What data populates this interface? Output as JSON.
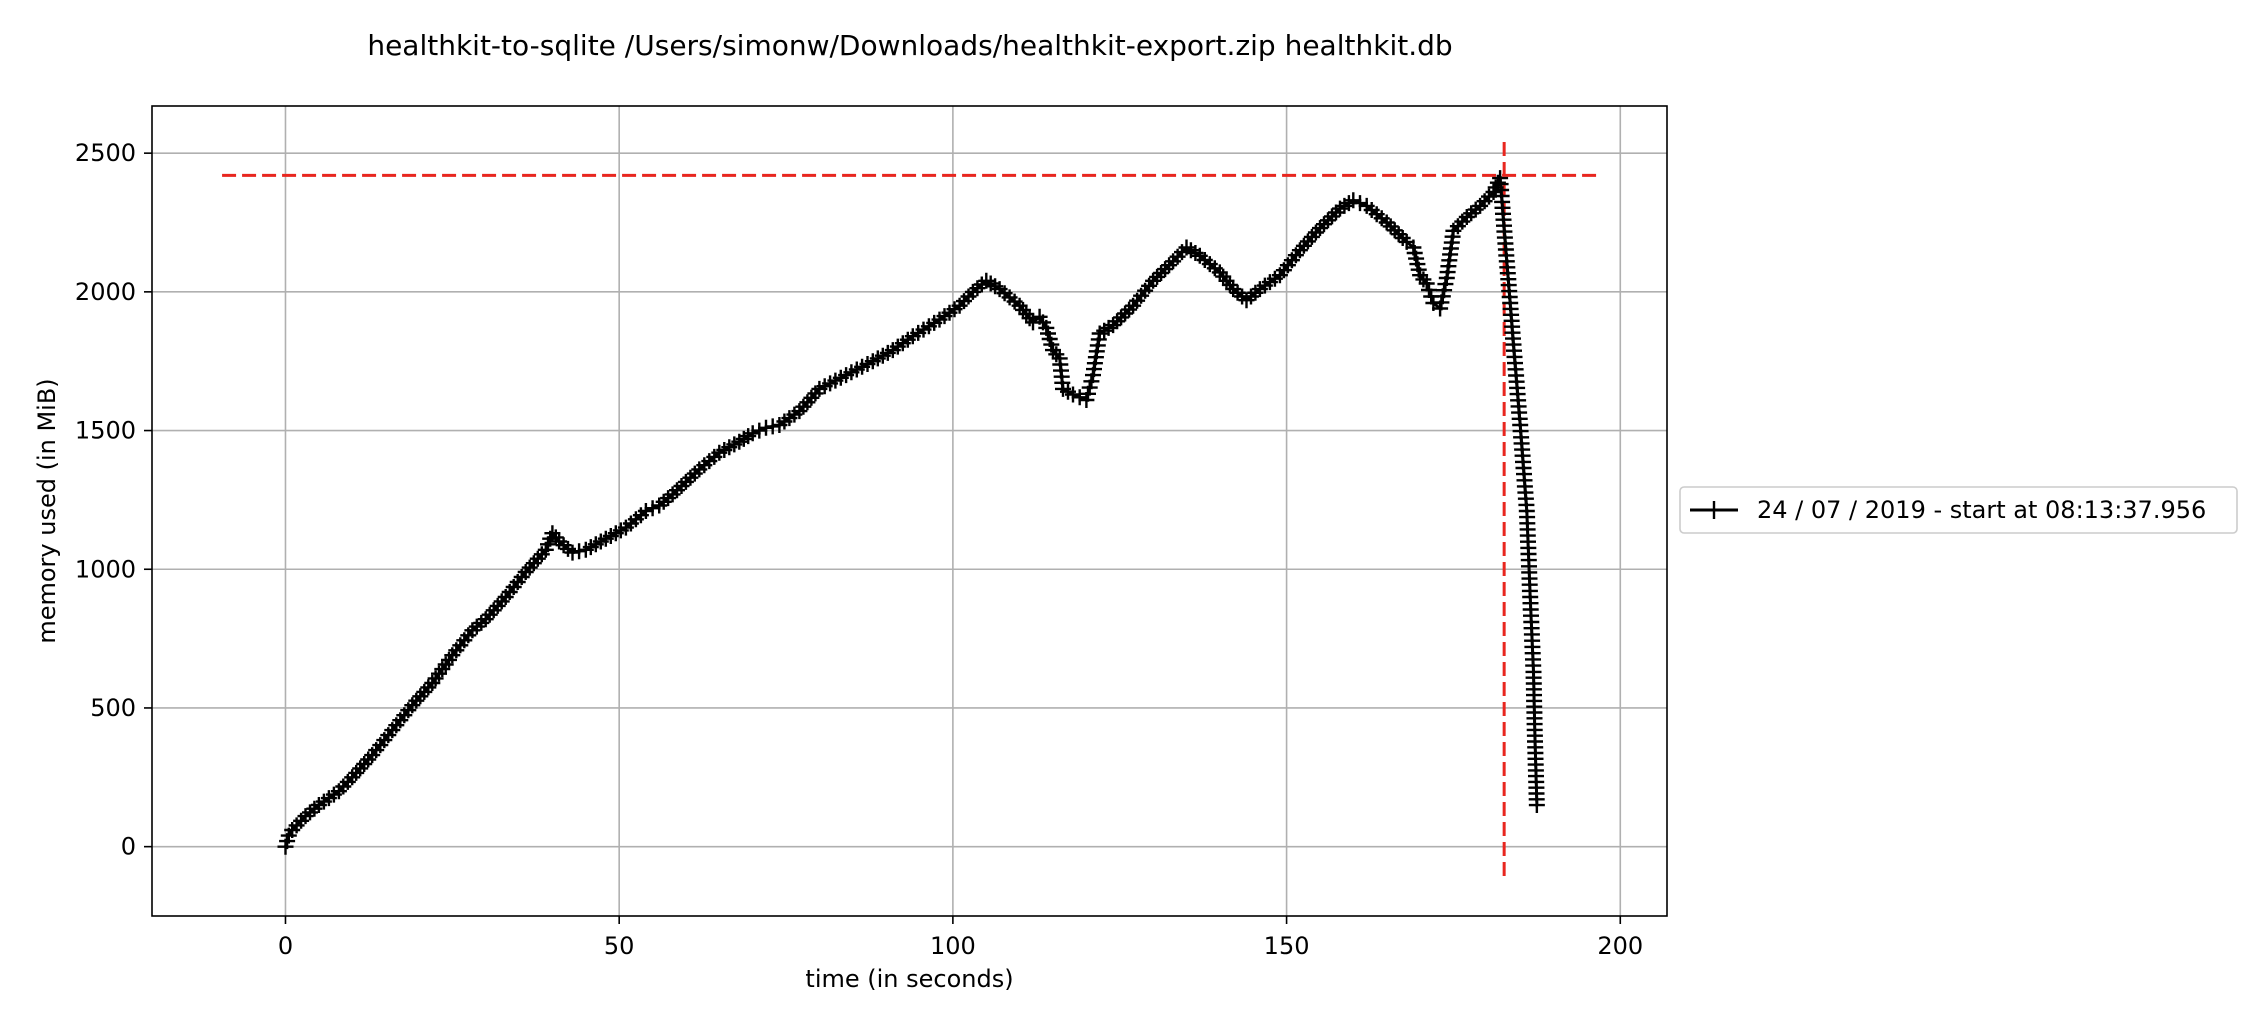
{
  "chart_data": {
    "type": "line",
    "title": "healthkit-to-sqlite /Users/simonw/Downloads/healthkit-export.zip healthkit.db",
    "xlabel": "time (in seconds)",
    "ylabel": "memory used (in MiB)",
    "xlim": [
      -20,
      207
    ],
    "ylim": [
      -250,
      2670
    ],
    "x_ticks": [
      0,
      50,
      100,
      150,
      200
    ],
    "y_ticks": [
      0,
      500,
      1000,
      1500,
      2000,
      2500
    ],
    "grid": true,
    "legend_position": "outside-right",
    "series": [
      {
        "name": "24 / 07 / 2019 - start at 08:13:37.956",
        "color": "#000000",
        "marker": "+",
        "points": [
          [
            0,
            0
          ],
          [
            0.5,
            40
          ],
          [
            1,
            60
          ],
          [
            3,
            110
          ],
          [
            5,
            150
          ],
          [
            8,
            200
          ],
          [
            10,
            250
          ],
          [
            13,
            330
          ],
          [
            16,
            420
          ],
          [
            19,
            510
          ],
          [
            22,
            590
          ],
          [
            25,
            690
          ],
          [
            28,
            780
          ],
          [
            30,
            820
          ],
          [
            33,
            900
          ],
          [
            36,
            990
          ],
          [
            39,
            1070
          ],
          [
            40,
            1130
          ],
          [
            41,
            1100
          ],
          [
            43,
            1060
          ],
          [
            45,
            1070
          ],
          [
            48,
            1110
          ],
          [
            51,
            1150
          ],
          [
            54,
            1210
          ],
          [
            56,
            1230
          ],
          [
            58,
            1270
          ],
          [
            62,
            1360
          ],
          [
            65,
            1420
          ],
          [
            68,
            1460
          ],
          [
            70,
            1490
          ],
          [
            72,
            1510
          ],
          [
            74,
            1520
          ],
          [
            77,
            1570
          ],
          [
            80,
            1650
          ],
          [
            84,
            1700
          ],
          [
            88,
            1750
          ],
          [
            91,
            1790
          ],
          [
            94,
            1840
          ],
          [
            98,
            1900
          ],
          [
            101,
            1950
          ],
          [
            103,
            2000
          ],
          [
            105,
            2040
          ],
          [
            107,
            2010
          ],
          [
            110,
            1950
          ],
          [
            112,
            1890
          ],
          [
            113,
            1910
          ],
          [
            114,
            1870
          ],
          [
            115,
            1790
          ],
          [
            116,
            1760
          ],
          [
            116.5,
            1650
          ],
          [
            118,
            1630
          ],
          [
            120,
            1610
          ],
          [
            121,
            1700
          ],
          [
            122,
            1850
          ],
          [
            124,
            1880
          ],
          [
            127,
            1950
          ],
          [
            130,
            2040
          ],
          [
            133,
            2110
          ],
          [
            135,
            2160
          ],
          [
            137,
            2130
          ],
          [
            140,
            2070
          ],
          [
            142,
            2010
          ],
          [
            144,
            1970
          ],
          [
            146,
            2010
          ],
          [
            149,
            2060
          ],
          [
            152,
            2150
          ],
          [
            155,
            2230
          ],
          [
            158,
            2300
          ],
          [
            160,
            2330
          ],
          [
            162,
            2310
          ],
          [
            165,
            2250
          ],
          [
            168,
            2180
          ],
          [
            169,
            2160
          ],
          [
            170,
            2060
          ],
          [
            171,
            2030
          ],
          [
            172,
            1960
          ],
          [
            173,
            1940
          ],
          [
            174,
            2050
          ],
          [
            175,
            2220
          ],
          [
            177,
            2270
          ],
          [
            179,
            2310
          ],
          [
            181,
            2360
          ],
          [
            182,
            2410
          ],
          [
            183,
            2110
          ],
          [
            184,
            1810
          ],
          [
            185,
            1520
          ],
          [
            186,
            1210
          ],
          [
            186.5,
            900
          ],
          [
            187,
            630
          ],
          [
            187.2,
            400
          ],
          [
            187.5,
            150
          ]
        ]
      }
    ],
    "reference_lines": [
      {
        "orientation": "horizontal",
        "value": 2420,
        "from": -9.5,
        "to": 196.5,
        "color": "#e8261f",
        "style": "dashed"
      },
      {
        "orientation": "vertical",
        "value": 182.6,
        "from": -120,
        "to": 2540,
        "color": "#e8261f",
        "style": "dashed"
      }
    ]
  }
}
